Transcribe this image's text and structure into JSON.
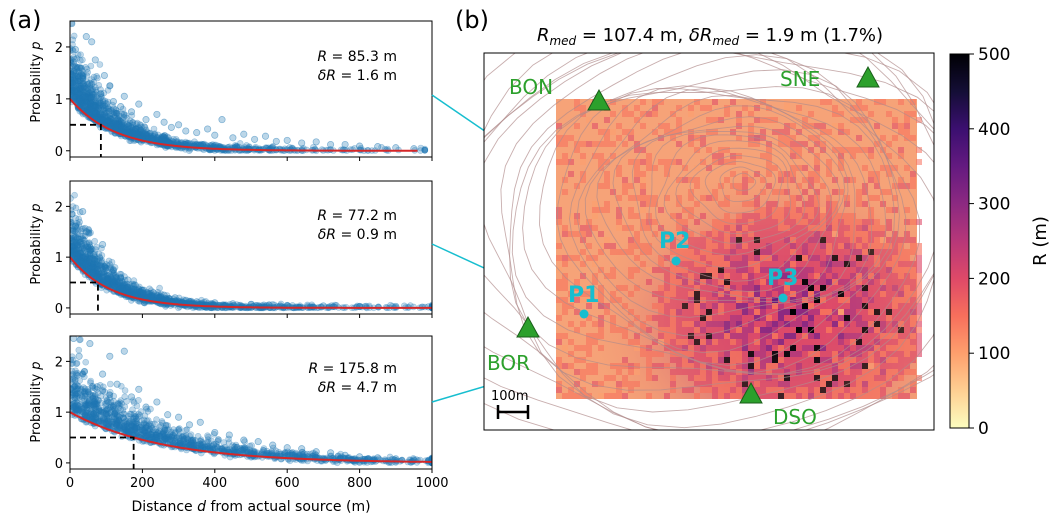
{
  "panel_a": {
    "label": "(a)"
  },
  "panel_b": {
    "label": "(b)",
    "title_parts": [
      "R",
      "med",
      " = 107.4 m,  ",
      "δR",
      "med",
      " = 1.9 m (1.7%)"
    ],
    "stations": [
      "BON",
      "SNE",
      "BOR",
      "DSO"
    ],
    "points": [
      "P1",
      "P2",
      "P3"
    ],
    "scalebar_label": "100m",
    "colorbar": {
      "label": "R (m)",
      "ticks": [
        "0",
        "100",
        "200",
        "300",
        "400",
        "500"
      ],
      "range": [
        0,
        500
      ]
    },
    "station_color": "#2ca02c",
    "point_color": "#17becf"
  },
  "chart_data": [
    {
      "type": "scatter",
      "name": "P1",
      "xlabel": "",
      "ylabel": "Probability p",
      "xlim": [
        0,
        1000
      ],
      "ylim": [
        -0.12,
        2.5
      ],
      "xticks": [
        "0",
        "200",
        "400",
        "600",
        "800",
        "1000"
      ],
      "yticks": [
        "0",
        "1",
        "2"
      ],
      "annotation": [
        "R = 85.3 m",
        "δR = 1.6 m"
      ],
      "fit": {
        "form": "exponential",
        "p0": 1.0,
        "median_distance": 85.3
      },
      "median_marker": {
        "x": 85.3,
        "y": 0.5
      },
      "points": [
        [
          5,
          2.45
        ],
        [
          15,
          1.95
        ],
        [
          25,
          1.6
        ],
        [
          35,
          1.45
        ],
        [
          45,
          2.2
        ],
        [
          55,
          1.3
        ],
        [
          60,
          2.1
        ],
        [
          70,
          1.75
        ],
        [
          85,
          1.1
        ],
        [
          95,
          1.45
        ],
        [
          110,
          1.25
        ],
        [
          120,
          0.95
        ],
        [
          140,
          0.85
        ],
        [
          150,
          1.05
        ],
        [
          170,
          0.75
        ],
        [
          190,
          0.9
        ],
        [
          210,
          0.6
        ],
        [
          240,
          0.7
        ],
        [
          260,
          0.55
        ],
        [
          280,
          0.45
        ],
        [
          300,
          0.5
        ],
        [
          320,
          0.38
        ],
        [
          350,
          0.35
        ],
        [
          380,
          0.42
        ],
        [
          400,
          0.3
        ],
        [
          420,
          0.6
        ],
        [
          450,
          0.25
        ],
        [
          480,
          0.32
        ],
        [
          510,
          0.22
        ],
        [
          540,
          0.28
        ],
        [
          570,
          0.18
        ],
        [
          600,
          0.2
        ],
        [
          640,
          0.15
        ],
        [
          680,
          0.17
        ],
        [
          720,
          0.12
        ],
        [
          760,
          0.12
        ],
        [
          800,
          0.09
        ],
        [
          850,
          0.08
        ],
        [
          900,
          0.06
        ],
        [
          950,
          0.04
        ]
      ]
    },
    {
      "type": "scatter",
      "name": "P2",
      "xlabel": "",
      "ylabel": "Probability p",
      "xlim": [
        0,
        1000
      ],
      "ylim": [
        -0.12,
        2.5
      ],
      "xticks": [
        "0",
        "200",
        "400",
        "600",
        "800",
        "1000"
      ],
      "yticks": [
        "0",
        "1",
        "2"
      ],
      "annotation": [
        "R = 77.2 m",
        "δR = 0.9 m"
      ],
      "fit": {
        "form": "exponential",
        "p0": 1.0,
        "median_distance": 77.2
      },
      "median_marker": {
        "x": 77.2,
        "y": 0.5
      },
      "points": [
        [
          5,
          1.85
        ],
        [
          15,
          1.6
        ],
        [
          25,
          1.35
        ],
        [
          35,
          1.9
        ],
        [
          45,
          1.5
        ],
        [
          55,
          1.2
        ],
        [
          65,
          1.05
        ],
        [
          75,
          0.95
        ],
        [
          90,
          1.25
        ],
        [
          100,
          0.85
        ],
        [
          120,
          0.75
        ],
        [
          140,
          0.6
        ],
        [
          160,
          0.55
        ],
        [
          180,
          0.45
        ],
        [
          200,
          0.35
        ],
        [
          230,
          0.3
        ],
        [
          260,
          0.25
        ],
        [
          290,
          0.2
        ],
        [
          320,
          0.15
        ],
        [
          350,
          0.12
        ],
        [
          400,
          0.1
        ],
        [
          450,
          0.08
        ],
        [
          500,
          0.07
        ],
        [
          550,
          0.06
        ],
        [
          600,
          0.05
        ],
        [
          700,
          0.04
        ],
        [
          800,
          0.03
        ],
        [
          900,
          0.03
        ],
        [
          990,
          0.02
        ]
      ]
    },
    {
      "type": "scatter",
      "name": "P3",
      "xlabel": "Distance d from actual source (m)",
      "ylabel": "Probability p",
      "xlim": [
        0,
        1000
      ],
      "ylim": [
        -0.12,
        2.5
      ],
      "xticks": [
        "0",
        "200",
        "400",
        "600",
        "800",
        "1000"
      ],
      "yticks": [
        "0",
        "1",
        "2"
      ],
      "annotation": [
        "R = 175.8 m",
        "δR = 4.7 m"
      ],
      "fit": {
        "form": "exponential",
        "p0": 1.0,
        "median_distance": 175.8
      },
      "median_marker": {
        "x": 175.8,
        "y": 0.5
      },
      "points": [
        [
          10,
          2.45
        ],
        [
          25,
          2.1
        ],
        [
          40,
          1.8
        ],
        [
          55,
          2.35
        ],
        [
          75,
          1.5
        ],
        [
          90,
          1.75
        ],
        [
          110,
          2.1
        ],
        [
          130,
          1.55
        ],
        [
          150,
          2.2
        ],
        [
          170,
          1.3
        ],
        [
          190,
          1.45
        ],
        [
          210,
          1.1
        ],
        [
          240,
          1.2
        ],
        [
          270,
          0.95
        ],
        [
          300,
          0.9
        ],
        [
          330,
          0.75
        ],
        [
          360,
          0.8
        ],
        [
          400,
          0.6
        ],
        [
          440,
          0.55
        ],
        [
          480,
          0.45
        ],
        [
          520,
          0.42
        ],
        [
          560,
          0.35
        ],
        [
          600,
          0.3
        ],
        [
          640,
          0.28
        ],
        [
          680,
          0.22
        ],
        [
          720,
          0.2
        ],
        [
          760,
          0.15
        ],
        [
          800,
          0.12
        ],
        [
          850,
          0.1
        ],
        [
          900,
          0.08
        ],
        [
          950,
          0.06
        ],
        [
          990,
          0.05
        ]
      ]
    }
  ]
}
